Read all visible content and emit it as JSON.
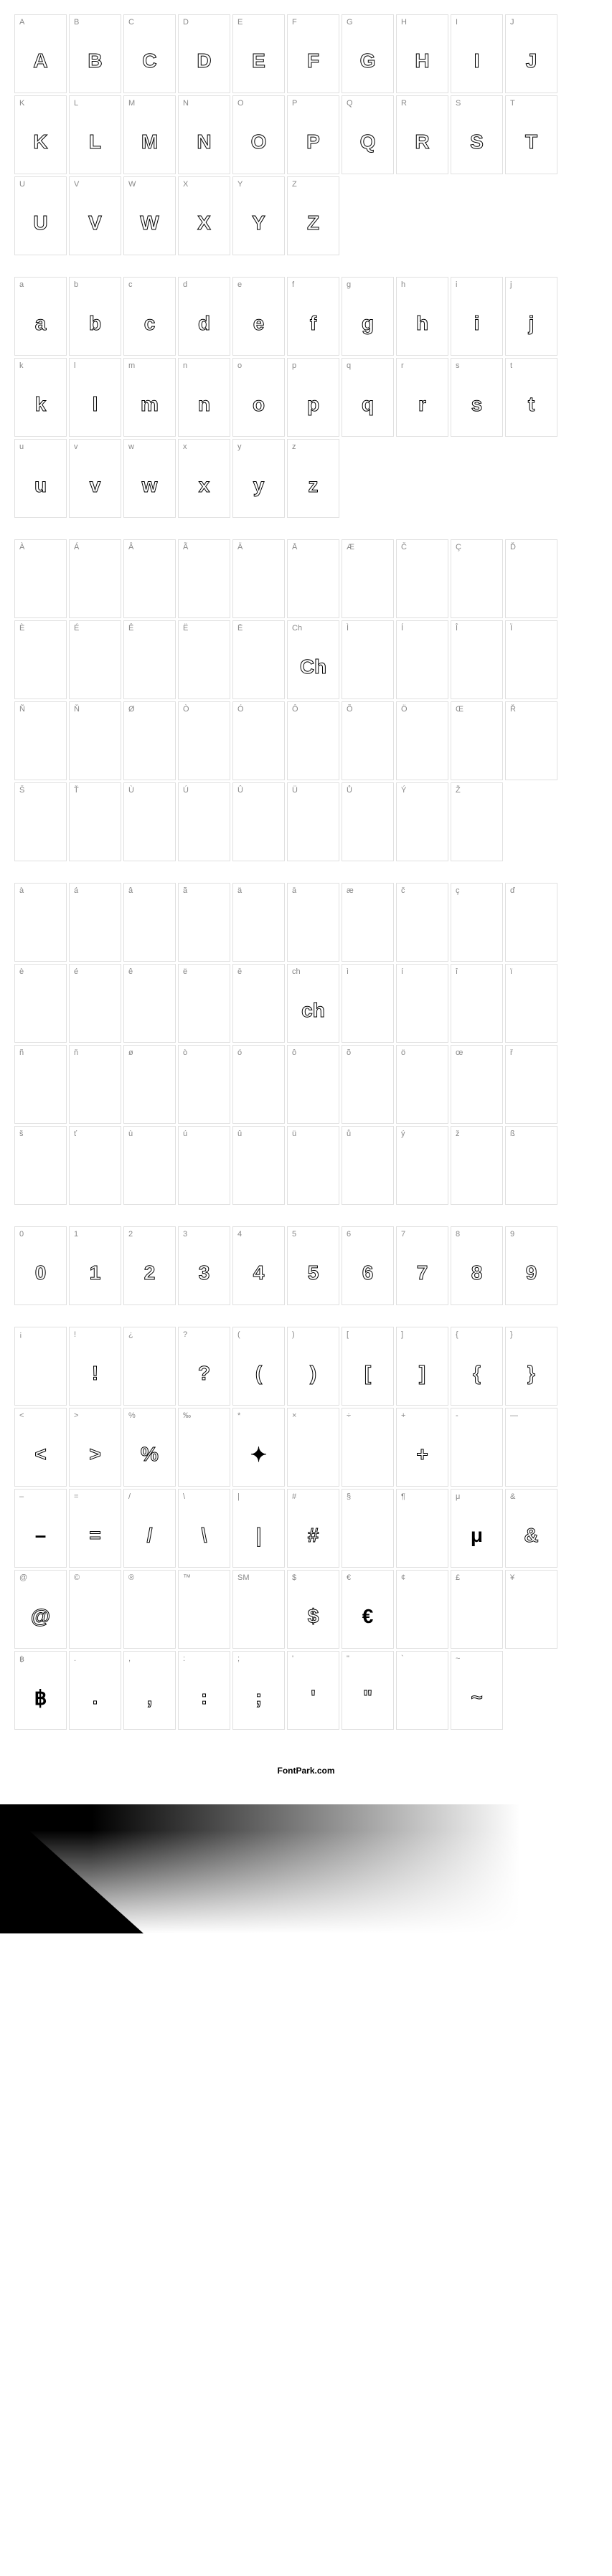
{
  "footer": "FontPark.com",
  "sections": [
    {
      "id": "uppercase",
      "cells": [
        {
          "label": "A",
          "glyph": "A"
        },
        {
          "label": "B",
          "glyph": "B"
        },
        {
          "label": "C",
          "glyph": "C"
        },
        {
          "label": "D",
          "glyph": "D"
        },
        {
          "label": "E",
          "glyph": "E"
        },
        {
          "label": "F",
          "glyph": "F"
        },
        {
          "label": "G",
          "glyph": "G"
        },
        {
          "label": "H",
          "glyph": "H"
        },
        {
          "label": "I",
          "glyph": "I"
        },
        {
          "label": "J",
          "glyph": "J"
        },
        {
          "label": "K",
          "glyph": "K"
        },
        {
          "label": "L",
          "glyph": "L"
        },
        {
          "label": "M",
          "glyph": "M"
        },
        {
          "label": "N",
          "glyph": "N"
        },
        {
          "label": "O",
          "glyph": "O"
        },
        {
          "label": "P",
          "glyph": "P"
        },
        {
          "label": "Q",
          "glyph": "Q"
        },
        {
          "label": "R",
          "glyph": "R"
        },
        {
          "label": "S",
          "glyph": "S"
        },
        {
          "label": "T",
          "glyph": "T"
        },
        {
          "label": "U",
          "glyph": "U"
        },
        {
          "label": "V",
          "glyph": "V"
        },
        {
          "label": "W",
          "glyph": "W"
        },
        {
          "label": "X",
          "glyph": "X"
        },
        {
          "label": "Y",
          "glyph": "Y"
        },
        {
          "label": "Z",
          "glyph": "Z"
        }
      ]
    },
    {
      "id": "lowercase",
      "cells": [
        {
          "label": "a",
          "glyph": "a"
        },
        {
          "label": "b",
          "glyph": "b"
        },
        {
          "label": "c",
          "glyph": "c"
        },
        {
          "label": "d",
          "glyph": "d"
        },
        {
          "label": "e",
          "glyph": "e"
        },
        {
          "label": "f",
          "glyph": "f"
        },
        {
          "label": "g",
          "glyph": "g"
        },
        {
          "label": "h",
          "glyph": "h"
        },
        {
          "label": "i",
          "glyph": "i"
        },
        {
          "label": "j",
          "glyph": "j"
        },
        {
          "label": "k",
          "glyph": "k"
        },
        {
          "label": "l",
          "glyph": "l"
        },
        {
          "label": "m",
          "glyph": "m"
        },
        {
          "label": "n",
          "glyph": "n"
        },
        {
          "label": "o",
          "glyph": "o"
        },
        {
          "label": "p",
          "glyph": "p"
        },
        {
          "label": "q",
          "glyph": "q"
        },
        {
          "label": "r",
          "glyph": "r"
        },
        {
          "label": "s",
          "glyph": "s"
        },
        {
          "label": "t",
          "glyph": "t"
        },
        {
          "label": "u",
          "glyph": "u"
        },
        {
          "label": "v",
          "glyph": "v"
        },
        {
          "label": "w",
          "glyph": "w"
        },
        {
          "label": "x",
          "glyph": "x"
        },
        {
          "label": "y",
          "glyph": "y"
        },
        {
          "label": "z",
          "glyph": "z"
        }
      ]
    },
    {
      "id": "accented-upper",
      "cells": [
        {
          "label": "À",
          "glyph": ""
        },
        {
          "label": "Á",
          "glyph": ""
        },
        {
          "label": "Â",
          "glyph": ""
        },
        {
          "label": "Ã",
          "glyph": ""
        },
        {
          "label": "Ä",
          "glyph": ""
        },
        {
          "label": "Ā",
          "glyph": ""
        },
        {
          "label": "Æ",
          "glyph": ""
        },
        {
          "label": "Č",
          "glyph": ""
        },
        {
          "label": "Ç",
          "glyph": ""
        },
        {
          "label": "Ď",
          "glyph": ""
        },
        {
          "label": "È",
          "glyph": ""
        },
        {
          "label": "É",
          "glyph": ""
        },
        {
          "label": "Ê",
          "glyph": ""
        },
        {
          "label": "Ë",
          "glyph": ""
        },
        {
          "label": "Ē",
          "glyph": ""
        },
        {
          "label": "Ch",
          "glyph": "Ch"
        },
        {
          "label": "Ì",
          "glyph": ""
        },
        {
          "label": "Í",
          "glyph": ""
        },
        {
          "label": "Î",
          "glyph": ""
        },
        {
          "label": "Ï",
          "glyph": ""
        },
        {
          "label": "Ñ",
          "glyph": ""
        },
        {
          "label": "Ň",
          "glyph": ""
        },
        {
          "label": "Ø",
          "glyph": ""
        },
        {
          "label": "Ò",
          "glyph": ""
        },
        {
          "label": "Ó",
          "glyph": ""
        },
        {
          "label": "Ô",
          "glyph": ""
        },
        {
          "label": "Õ",
          "glyph": ""
        },
        {
          "label": "Ö",
          "glyph": ""
        },
        {
          "label": "Œ",
          "glyph": ""
        },
        {
          "label": "Ř",
          "glyph": ""
        },
        {
          "label": "Š",
          "glyph": ""
        },
        {
          "label": "Ť",
          "glyph": ""
        },
        {
          "label": "Ù",
          "glyph": ""
        },
        {
          "label": "Ú",
          "glyph": ""
        },
        {
          "label": "Û",
          "glyph": ""
        },
        {
          "label": "Ü",
          "glyph": ""
        },
        {
          "label": "Ů",
          "glyph": ""
        },
        {
          "label": "Ý",
          "glyph": ""
        },
        {
          "label": "Ž",
          "glyph": ""
        }
      ]
    },
    {
      "id": "accented-lower",
      "cells": [
        {
          "label": "à",
          "glyph": ""
        },
        {
          "label": "á",
          "glyph": ""
        },
        {
          "label": "â",
          "glyph": ""
        },
        {
          "label": "ã",
          "glyph": ""
        },
        {
          "label": "ä",
          "glyph": ""
        },
        {
          "label": "ā",
          "glyph": ""
        },
        {
          "label": "æ",
          "glyph": ""
        },
        {
          "label": "č",
          "glyph": ""
        },
        {
          "label": "ç",
          "glyph": ""
        },
        {
          "label": "ď",
          "glyph": ""
        },
        {
          "label": "è",
          "glyph": ""
        },
        {
          "label": "é",
          "glyph": ""
        },
        {
          "label": "ê",
          "glyph": ""
        },
        {
          "label": "ë",
          "glyph": ""
        },
        {
          "label": "ē",
          "glyph": ""
        },
        {
          "label": "ch",
          "glyph": "ch"
        },
        {
          "label": "ì",
          "glyph": ""
        },
        {
          "label": "í",
          "glyph": ""
        },
        {
          "label": "î",
          "glyph": ""
        },
        {
          "label": "ï",
          "glyph": ""
        },
        {
          "label": "ñ",
          "glyph": ""
        },
        {
          "label": "ň",
          "glyph": ""
        },
        {
          "label": "ø",
          "glyph": ""
        },
        {
          "label": "ò",
          "glyph": ""
        },
        {
          "label": "ó",
          "glyph": ""
        },
        {
          "label": "ô",
          "glyph": ""
        },
        {
          "label": "õ",
          "glyph": ""
        },
        {
          "label": "ö",
          "glyph": ""
        },
        {
          "label": "œ",
          "glyph": ""
        },
        {
          "label": "ř",
          "glyph": ""
        },
        {
          "label": "š",
          "glyph": ""
        },
        {
          "label": "ť",
          "glyph": ""
        },
        {
          "label": "ù",
          "glyph": ""
        },
        {
          "label": "ú",
          "glyph": ""
        },
        {
          "label": "û",
          "glyph": ""
        },
        {
          "label": "ü",
          "glyph": ""
        },
        {
          "label": "ů",
          "glyph": ""
        },
        {
          "label": "ý",
          "glyph": ""
        },
        {
          "label": "ž",
          "glyph": ""
        },
        {
          "label": "ß",
          "glyph": ""
        }
      ]
    },
    {
      "id": "digits",
      "cells": [
        {
          "label": "0",
          "glyph": "0"
        },
        {
          "label": "1",
          "glyph": "1"
        },
        {
          "label": "2",
          "glyph": "2"
        },
        {
          "label": "3",
          "glyph": "3"
        },
        {
          "label": "4",
          "glyph": "4"
        },
        {
          "label": "5",
          "glyph": "5"
        },
        {
          "label": "6",
          "glyph": "6"
        },
        {
          "label": "7",
          "glyph": "7"
        },
        {
          "label": "8",
          "glyph": "8"
        },
        {
          "label": "9",
          "glyph": "9"
        }
      ]
    },
    {
      "id": "symbols",
      "cells": [
        {
          "label": "¡",
          "glyph": ""
        },
        {
          "label": "!",
          "glyph": "!"
        },
        {
          "label": "¿",
          "glyph": ""
        },
        {
          "label": "?",
          "glyph": "?"
        },
        {
          "label": "(",
          "glyph": "("
        },
        {
          "label": ")",
          "glyph": ")"
        },
        {
          "label": "[",
          "glyph": "["
        },
        {
          "label": "]",
          "glyph": "]"
        },
        {
          "label": "{",
          "glyph": "{"
        },
        {
          "label": "}",
          "glyph": "}"
        },
        {
          "label": "<",
          "glyph": "<"
        },
        {
          "label": ">",
          "glyph": ">"
        },
        {
          "label": "%",
          "glyph": "%"
        },
        {
          "label": "‰",
          "glyph": ""
        },
        {
          "label": "*",
          "glyph": "✦",
          "solid": true
        },
        {
          "label": "×",
          "glyph": ""
        },
        {
          "label": "÷",
          "glyph": ""
        },
        {
          "label": "+",
          "glyph": "+"
        },
        {
          "label": "-",
          "glyph": ""
        },
        {
          "label": "—",
          "glyph": ""
        },
        {
          "label": "–",
          "glyph": "–",
          "solid": true
        },
        {
          "label": "=",
          "glyph": "="
        },
        {
          "label": "/",
          "glyph": "/"
        },
        {
          "label": "\\",
          "glyph": "\\"
        },
        {
          "label": "|",
          "glyph": "|"
        },
        {
          "label": "#",
          "glyph": "#"
        },
        {
          "label": "§",
          "glyph": ""
        },
        {
          "label": "¶",
          "glyph": ""
        },
        {
          "label": "μ",
          "glyph": "μ",
          "solid": true
        },
        {
          "label": "&",
          "glyph": "&"
        },
        {
          "label": "@",
          "glyph": "@"
        },
        {
          "label": "©",
          "glyph": ""
        },
        {
          "label": "®",
          "glyph": ""
        },
        {
          "label": "™",
          "glyph": ""
        },
        {
          "label": "SM",
          "glyph": ""
        },
        {
          "label": "$",
          "glyph": "$"
        },
        {
          "label": "€",
          "glyph": "€",
          "solid": true
        },
        {
          "label": "¢",
          "glyph": ""
        },
        {
          "label": "£",
          "glyph": ""
        },
        {
          "label": "¥",
          "glyph": ""
        },
        {
          "label": "฿",
          "glyph": "฿",
          "solid": true
        },
        {
          "label": ".",
          "glyph": "."
        },
        {
          "label": ",",
          "glyph": ","
        },
        {
          "label": ":",
          "glyph": ":"
        },
        {
          "label": ";",
          "glyph": ";"
        },
        {
          "label": "'",
          "glyph": "'"
        },
        {
          "label": "\"",
          "glyph": "\""
        },
        {
          "label": "`",
          "glyph": ""
        },
        {
          "label": "~",
          "glyph": "~"
        }
      ]
    }
  ]
}
